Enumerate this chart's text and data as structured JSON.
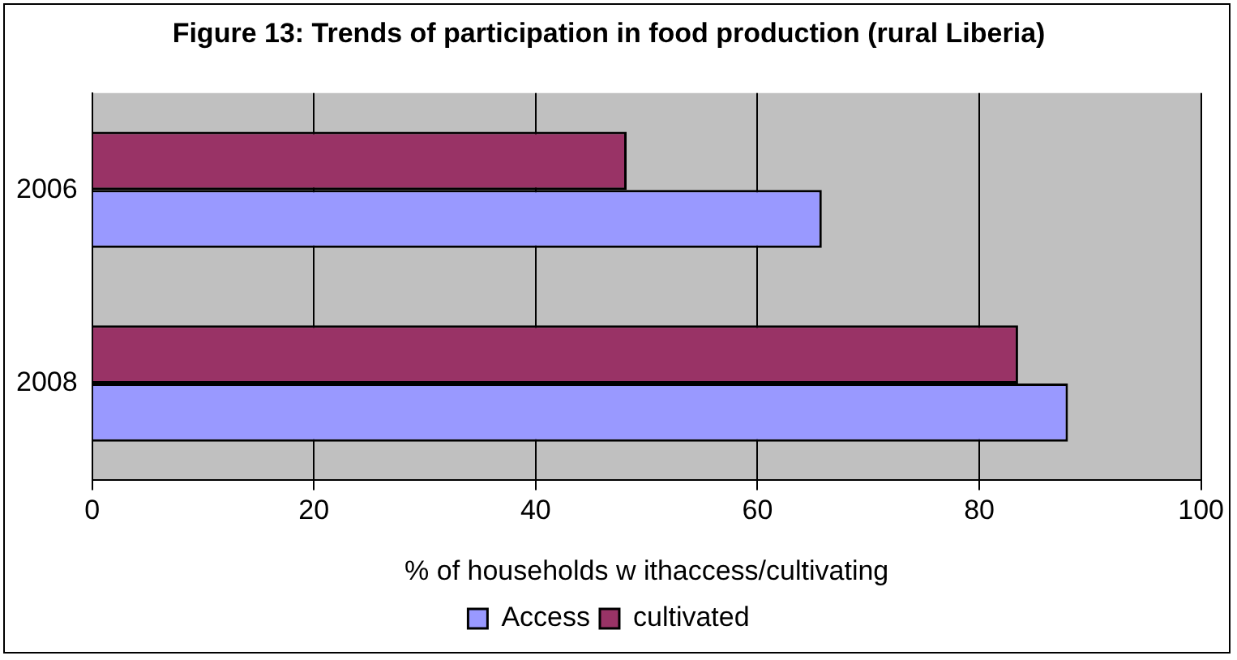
{
  "chart_data": {
    "type": "bar",
    "orientation": "horizontal",
    "title": "Figure 13: Trends of participation in food production (rural Liberia)",
    "xlabel": "% of households w ithaccess/cultivating",
    "categories": [
      "2006",
      "2008"
    ],
    "series": [
      {
        "name": "Access",
        "color": "#9999ff",
        "values": [
          65.8,
          88.0
        ]
      },
      {
        "name": "cultivated",
        "color": "#993366",
        "values": [
          48.2,
          83.5
        ]
      }
    ],
    "xlim": [
      0,
      100
    ],
    "xticks": [
      0,
      20,
      40,
      60,
      80,
      100
    ],
    "grid": "x",
    "legend": "bottom"
  }
}
